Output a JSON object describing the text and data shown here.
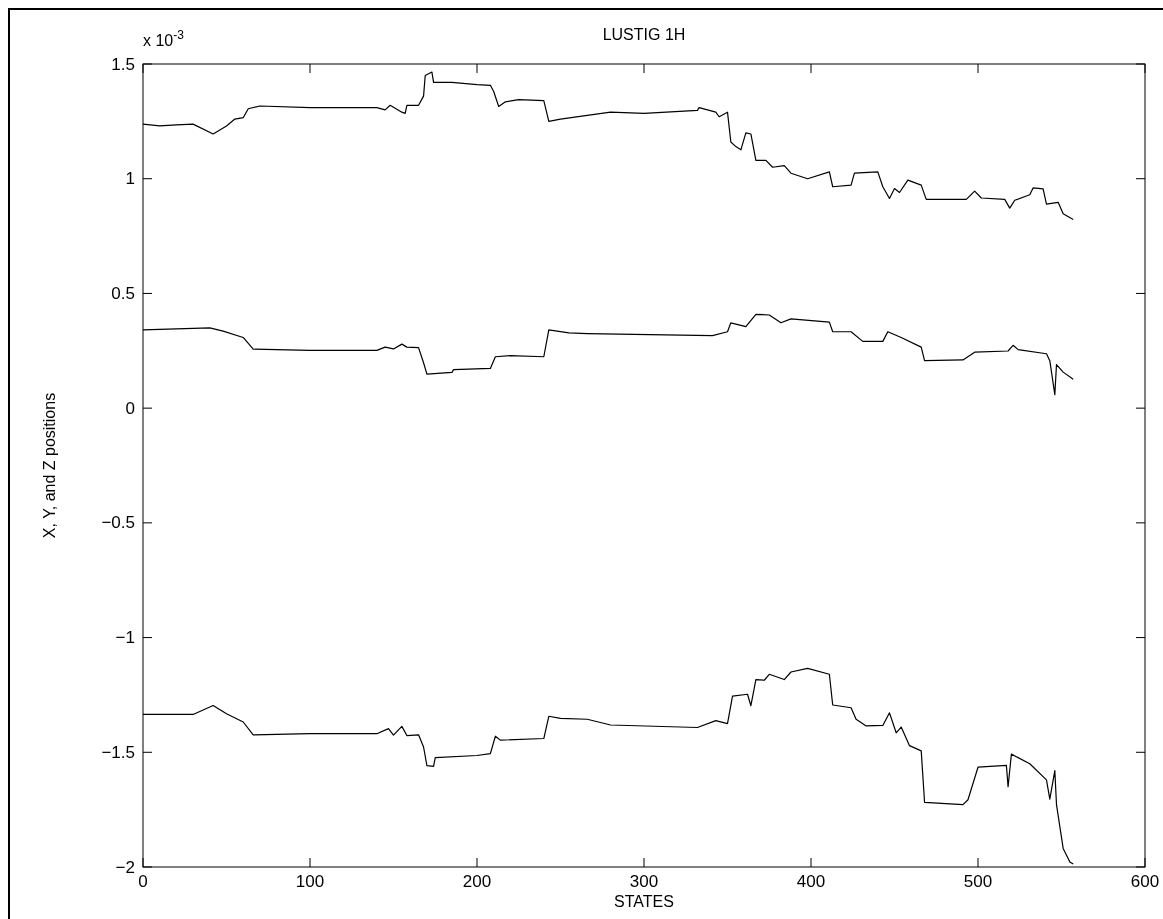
{
  "chart_data": {
    "type": "line",
    "title": "LUSTIG 1H",
    "xlabel": "STATES",
    "ylabel": "X, Y, and Z positions",
    "annotations": [
      "x 10$^{-3}$"
    ],
    "xlim": [
      0,
      600
    ],
    "xticks": [
      0,
      100,
      200,
      300,
      400,
      500,
      600
    ],
    "ylim": [
      -2,
      1.5
    ],
    "yticks": [
      -2,
      -1.5,
      -1,
      -0.5,
      0,
      0.5,
      1,
      1.5
    ],
    "grid": false,
    "marker": "none",
    "line_style": "solid",
    "series": [
      {
        "color": "#000000",
        "x": [
          0,
          10,
          20,
          30,
          42,
          50,
          55,
          60,
          63,
          70,
          100,
          140,
          145,
          148,
          155,
          157,
          158,
          165,
          168,
          169,
          173,
          174,
          185,
          200,
          208,
          210,
          213,
          217,
          225,
          240,
          242,
          243,
          250,
          266,
          280,
          300,
          332,
          333,
          343,
          345,
          350,
          352,
          355,
          358,
          361,
          364,
          367,
          373,
          377,
          384,
          388,
          398,
          411,
          413,
          424,
          426,
          440,
          443,
          447,
          450,
          453,
          458,
          466,
          469,
          493,
          498,
          502,
          516,
          519,
          522,
          531,
          533,
          539,
          541,
          548,
          551,
          557
        ],
        "values": [
          1.238,
          1.23,
          1.235,
          1.238,
          1.195,
          1.23,
          1.26,
          1.266,
          1.305,
          1.317,
          1.31,
          1.31,
          1.3,
          1.32,
          1.29,
          1.285,
          1.32,
          1.32,
          1.36,
          1.45,
          1.465,
          1.42,
          1.42,
          1.41,
          1.407,
          1.38,
          1.315,
          1.335,
          1.345,
          1.34,
          1.28,
          1.25,
          1.26,
          1.276,
          1.29,
          1.285,
          1.298,
          1.31,
          1.29,
          1.27,
          1.29,
          1.16,
          1.14,
          1.126,
          1.2,
          1.195,
          1.08,
          1.08,
          1.05,
          1.057,
          1.024,
          1.0,
          1.03,
          0.965,
          0.972,
          1.024,
          1.03,
          0.965,
          0.914,
          0.957,
          0.94,
          0.994,
          0.972,
          0.91,
          0.91,
          0.946,
          0.916,
          0.91,
          0.872,
          0.906,
          0.93,
          0.96,
          0.956,
          0.889,
          0.897,
          0.847,
          0.822
        ]
      },
      {
        "color": "#000000",
        "x": [
          0,
          40,
          48,
          60,
          66,
          100,
          140,
          145,
          150,
          155,
          158,
          165,
          168,
          170,
          185,
          186,
          208,
          211,
          220,
          240,
          243,
          255,
          266,
          341,
          350,
          352,
          361,
          367,
          375,
          382,
          388,
          411,
          413,
          424,
          431,
          443,
          446,
          454,
          466,
          468,
          491,
          498,
          518,
          521,
          524,
          541,
          543,
          546,
          547,
          551,
          557
        ],
        "values": [
          0.341,
          0.35,
          0.336,
          0.308,
          0.257,
          0.252,
          0.252,
          0.266,
          0.258,
          0.279,
          0.266,
          0.264,
          0.198,
          0.148,
          0.156,
          0.168,
          0.173,
          0.224,
          0.229,
          0.224,
          0.341,
          0.328,
          0.325,
          0.316,
          0.333,
          0.372,
          0.355,
          0.409,
          0.406,
          0.372,
          0.389,
          0.375,
          0.333,
          0.333,
          0.291,
          0.291,
          0.333,
          0.308,
          0.266,
          0.207,
          0.21,
          0.244,
          0.249,
          0.274,
          0.255,
          0.237,
          0.207,
          0.059,
          0.19,
          0.157,
          0.126
        ]
      },
      {
        "color": "#000000",
        "x": [
          0,
          30,
          42,
          50,
          60,
          66,
          100,
          140,
          147,
          150,
          155,
          158,
          165,
          168,
          170,
          174,
          175,
          200,
          208,
          211,
          214,
          240,
          243,
          250,
          266,
          280,
          332,
          343,
          350,
          353,
          362,
          364,
          367,
          372,
          375,
          384,
          388,
          398,
          411,
          413,
          424,
          427,
          433,
          443,
          447,
          451,
          454,
          459,
          466,
          468,
          491,
          494,
          500,
          517,
          518,
          520,
          531,
          541,
          543,
          546,
          547,
          551,
          555,
          557
        ],
        "values": [
          -1.335,
          -1.335,
          -1.296,
          -1.332,
          -1.368,
          -1.424,
          -1.419,
          -1.419,
          -1.397,
          -1.425,
          -1.387,
          -1.427,
          -1.424,
          -1.477,
          -1.558,
          -1.561,
          -1.523,
          -1.514,
          -1.506,
          -1.43,
          -1.447,
          -1.44,
          -1.343,
          -1.352,
          -1.356,
          -1.381,
          -1.392,
          -1.362,
          -1.375,
          -1.255,
          -1.247,
          -1.297,
          -1.183,
          -1.186,
          -1.16,
          -1.183,
          -1.15,
          -1.134,
          -1.16,
          -1.294,
          -1.306,
          -1.356,
          -1.385,
          -1.383,
          -1.328,
          -1.415,
          -1.39,
          -1.471,
          -1.494,
          -1.718,
          -1.728,
          -1.707,
          -1.565,
          -1.557,
          -1.65,
          -1.508,
          -1.55,
          -1.62,
          -1.704,
          -1.58,
          -1.728,
          -1.919,
          -1.978,
          -1.987
        ]
      }
    ]
  }
}
